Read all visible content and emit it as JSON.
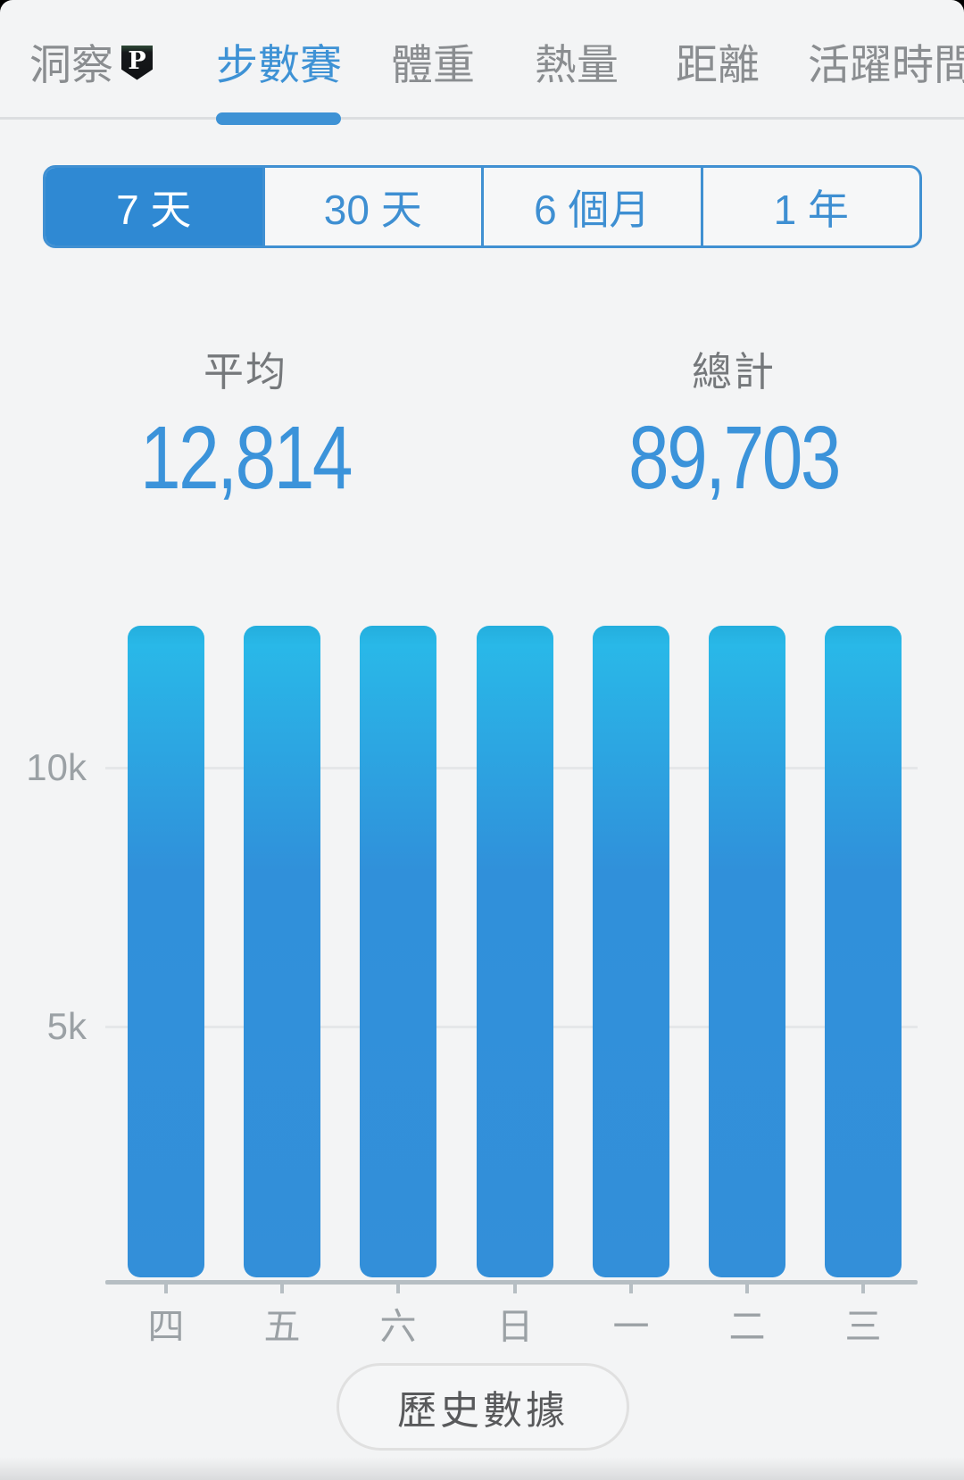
{
  "tabs": {
    "badge_letter": "P",
    "items": [
      {
        "label": "洞察",
        "active": false,
        "has_badge": true
      },
      {
        "label": "步數賽",
        "active": true,
        "has_badge": false
      },
      {
        "label": "體重",
        "active": false,
        "has_badge": false
      },
      {
        "label": "熱量",
        "active": false,
        "has_badge": false
      },
      {
        "label": "距離",
        "active": false,
        "has_badge": false
      },
      {
        "label": "活躍時間",
        "active": false,
        "has_badge": false
      }
    ]
  },
  "range_selector": {
    "options": [
      {
        "label": "7 天",
        "selected": true
      },
      {
        "label": "30 天",
        "selected": false
      },
      {
        "label": "6 個月",
        "selected": false
      },
      {
        "label": "1 年",
        "selected": false
      }
    ]
  },
  "stats": {
    "average_label": "平均",
    "average_value": "12,814",
    "total_label": "總計",
    "total_value": "89,703"
  },
  "chart_data": {
    "type": "bar",
    "categories": [
      "四",
      "五",
      "六",
      "日",
      "一",
      "二",
      "三"
    ],
    "values": [
      12815,
      12815,
      12815,
      12815,
      12815,
      12815,
      12813
    ],
    "title": "",
    "xlabel": "",
    "ylabel": "",
    "ylim": [
      0,
      12815
    ],
    "y_ticks": [
      {
        "value": 10000,
        "label": "10k"
      },
      {
        "value": 5000,
        "label": "5k"
      }
    ],
    "grid": true,
    "legend": false
  },
  "history": {
    "label": "歷史數據"
  },
  "colors": {
    "background": "#f3f4f5",
    "accent_blue": "#3e92d5",
    "segment_selected_bg": "#2f89d3",
    "segment_border": "#4090d2",
    "stat_value_blue": "#3b93da",
    "bar_top": "#29b8e8",
    "bar_main": "#3090da",
    "gridline": "#e5e7e9",
    "axis": "#b6bec3",
    "inactive_tab_gray": "#8a8d90",
    "axis_label_gray": "#9ba1a5",
    "stat_label_gray": "#75787b",
    "button_border": "#e0e0e0",
    "button_text": "#58595b",
    "badge_bg": "#101214",
    "badge_letter_color": "#ffffff"
  }
}
